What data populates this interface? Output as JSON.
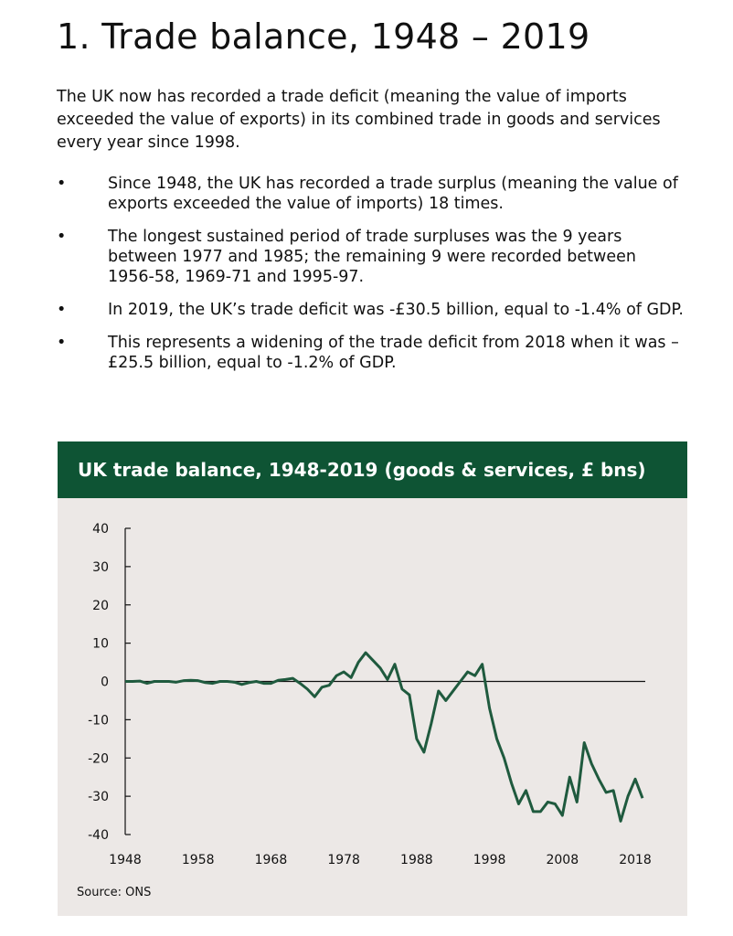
{
  "heading": "1.  Trade balance, 1948 – 2019",
  "intro": "The UK now has recorded a trade deficit (meaning the value of imports exceeded the value of exports) in its combined trade in goods and services every year since 1998.",
  "bullets": [
    "Since 1948, the UK has recorded a trade surplus (meaning the value of exports exceeded the value of imports) 18 times.",
    "The longest sustained period of trade surpluses was the 9 years between 1977 and 1985; the remaining 9 were recorded between 1956-58, 1969-71 and 1995-97.",
    "In 2019, the UK’s trade deficit was -£30.5 billion, equal to -1.4% of GDP.",
    "This represents a widening of the trade deficit from 2018 when it was –£25.5 billion, equal to -1.2% of GDP."
  ],
  "bullet_char": "•",
  "source": "Source: ONS",
  "chart_data": {
    "type": "line",
    "title": "UK trade balance, 1948-2019 (goods & services, £ bns)",
    "xlabel": "",
    "ylabel": "",
    "ylim": [
      -40,
      40
    ],
    "xlim": [
      1948,
      2019
    ],
    "yticks": [
      40,
      30,
      20,
      10,
      0,
      -10,
      -20,
      -30,
      -40
    ],
    "xticks": [
      1948,
      1958,
      1968,
      1978,
      1988,
      1998,
      2008,
      2018
    ],
    "color": "#1f5a3e",
    "x_start": 1948,
    "values": [
      0,
      0,
      0.1,
      -0.5,
      0,
      0,
      0,
      -0.2,
      0.2,
      0.3,
      0.2,
      -0.3,
      -0.5,
      0,
      0,
      -0.2,
      -0.8,
      -0.3,
      0,
      -0.5,
      -0.5,
      0.3,
      0.5,
      0.8,
      -0.5,
      -2,
      -4,
      -1.5,
      -1,
      1.5,
      2.5,
      1,
      5,
      7.5,
      5.5,
      3.5,
      0.5,
      4.5,
      -2,
      -3.5,
      -15,
      -18.5,
      -11,
      -2.5,
      -5,
      -2.5,
      0,
      2.5,
      1.5,
      4.5,
      -7,
      -15,
      -20,
      -26.5,
      -32,
      -28.5,
      -34,
      -34,
      -31.5,
      -32,
      -35,
      -25,
      -31.5,
      -16,
      -21.5,
      -25.5,
      -29,
      -28.5,
      -36.5,
      -30,
      -25.5,
      -30.5
    ]
  }
}
